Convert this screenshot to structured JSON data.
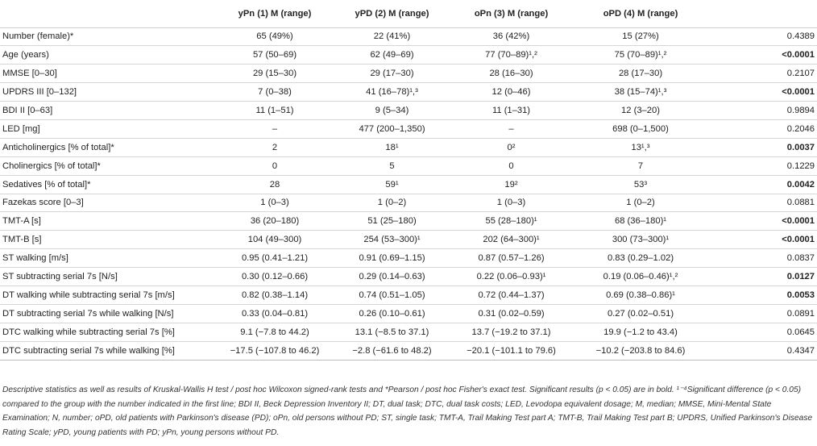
{
  "table": {
    "headers": [
      "",
      "yPn (1) M (range)",
      "yPD (2) M (range)",
      "oPn (3) M (range)",
      "oPD (4) M (range)",
      ""
    ],
    "rows": [
      {
        "label": "Number (female)*",
        "cells": [
          "65 (49%)",
          "22 (41%)",
          "36 (42%)",
          "15 (27%)"
        ],
        "p": "0.4389",
        "p_bold": false
      },
      {
        "label": "Age (years)",
        "cells": [
          "57 (50–69)",
          "62 (49–69)",
          "77 (70–89)¹,²",
          "75 (70–89)¹,²"
        ],
        "p": "<0.0001",
        "p_bold": true
      },
      {
        "label": "MMSE [0–30]",
        "cells": [
          "29 (15–30)",
          "29 (17–30)",
          "28 (16–30)",
          "28 (17–30)"
        ],
        "p": "0.2107",
        "p_bold": false
      },
      {
        "label": "UPDRS III [0–132]",
        "cells": [
          "7 (0–38)",
          "41 (16–78)¹,³",
          "12 (0–46)",
          "38 (15–74)¹,³"
        ],
        "p": "<0.0001",
        "p_bold": true
      },
      {
        "label": "BDI II [0–63]",
        "cells": [
          "11 (1–51)",
          "9 (5–34)",
          "11 (1–31)",
          "12 (3–20)"
        ],
        "p": "0.9894",
        "p_bold": false
      },
      {
        "label": "LED [mg]",
        "cells": [
          "–",
          "477 (200–1,350)",
          "–",
          "698 (0–1,500)"
        ],
        "p": "0.2046",
        "p_bold": false
      },
      {
        "label": "Anticholinergics [% of total]*",
        "cells": [
          "2",
          "18¹",
          "0²",
          "13¹,³"
        ],
        "p": "0.0037",
        "p_bold": true
      },
      {
        "label": "Cholinergics [% of total]*",
        "cells": [
          "0",
          "5",
          "0",
          "7"
        ],
        "p": "0.1229",
        "p_bold": false
      },
      {
        "label": "Sedatives [% of total]*",
        "cells": [
          "28",
          "59¹",
          "19²",
          "53³"
        ],
        "p": "0.0042",
        "p_bold": true
      },
      {
        "label": "Fazekas score [0–3]",
        "cells": [
          "1 (0–3)",
          "1 (0–2)",
          "1 (0–3)",
          "1 (0–2)"
        ],
        "p": "0.0881",
        "p_bold": false
      },
      {
        "label": "TMT-A [s]",
        "cells": [
          "36 (20–180)",
          "51 (25–180)",
          "55 (28–180)¹",
          "68 (36–180)¹"
        ],
        "p": "<0.0001",
        "p_bold": true
      },
      {
        "label": "TMT-B [s]",
        "cells": [
          "104 (49–300)",
          "254 (53–300)¹",
          "202 (64–300)¹",
          "300 (73–300)¹"
        ],
        "p": "<0.0001",
        "p_bold": true
      },
      {
        "label": "ST walking [m/s]",
        "cells": [
          "0.95 (0.41–1.21)",
          "0.91 (0.69–1.15)",
          "0.87 (0.57–1.26)",
          "0.83 (0.29–1.02)"
        ],
        "p": "0.0837",
        "p_bold": false
      },
      {
        "label": "ST subtracting serial 7s [N/s]",
        "cells": [
          "0.30 (0.12–0.66)",
          "0.29 (0.14–0.63)",
          "0.22 (0.06–0.93)¹",
          "0.19 (0.06–0.46)¹,²"
        ],
        "p": "0.0127",
        "p_bold": true
      },
      {
        "label": "DT walking while subtracting serial 7s [m/s]",
        "cells": [
          "0.82 (0.38–1.14)",
          "0.74 (0.51–1.05)",
          "0.72 (0.44–1.37)",
          "0.69 (0.38–0.86)¹"
        ],
        "p": "0.0053",
        "p_bold": true
      },
      {
        "label": "DT subtracting serial 7s while walking [N/s]",
        "cells": [
          "0.33 (0.04–0.81)",
          "0.26 (0.10–0.61)",
          "0.31 (0.02–0.59)",
          "0.27 (0.02–0.51)"
        ],
        "p": "0.0891",
        "p_bold": false
      },
      {
        "label": "DTC walking while subtracting serial 7s [%]",
        "cells": [
          "9.1 (−7.8 to 44.2)",
          "13.1 (−8.5 to 37.1)",
          "13.7 (−19.2 to 37.1)",
          "19.9 (−1.2 to 43.4)"
        ],
        "p": "0.0645",
        "p_bold": false
      },
      {
        "label": "DTC subtracting serial 7s while walking [%]",
        "cells": [
          "−17.5 (−107.8 to 46.2)",
          "−2.8 (−61.6 to 48.2)",
          "−20.1 (−101.1 to 79.6)",
          "−10.2 (−203.8 to 84.6)"
        ],
        "p": "0.4347",
        "p_bold": false
      }
    ]
  },
  "footnote": "Descriptive statistics as well as results of Kruskal-Wallis H test / post hoc Wilcoxon signed-rank tests and *Pearson / post hoc Fisher's exact test. Significant results (p < 0.05) are in bold. ¹⁻⁴Significant difference (p < 0.05) compared to the group with the number indicated in the first line; BDI II, Beck Depression Inventory II; DT, dual task; DTC, dual task costs; LED, Levodopa equivalent dosage; M, median; MMSE, Mini-Mental State Examination; N, number; oPD, old patients with Parkinson's disease (PD); oPn, old persons without PD; ST, single task; TMT-A, Trail Making Test part A; TMT-B, Trail Making Test part B; UPDRS, Unified Parkinson's Disease Rating Scale; yPD, young patients with PD; yPn, young persons without PD."
}
